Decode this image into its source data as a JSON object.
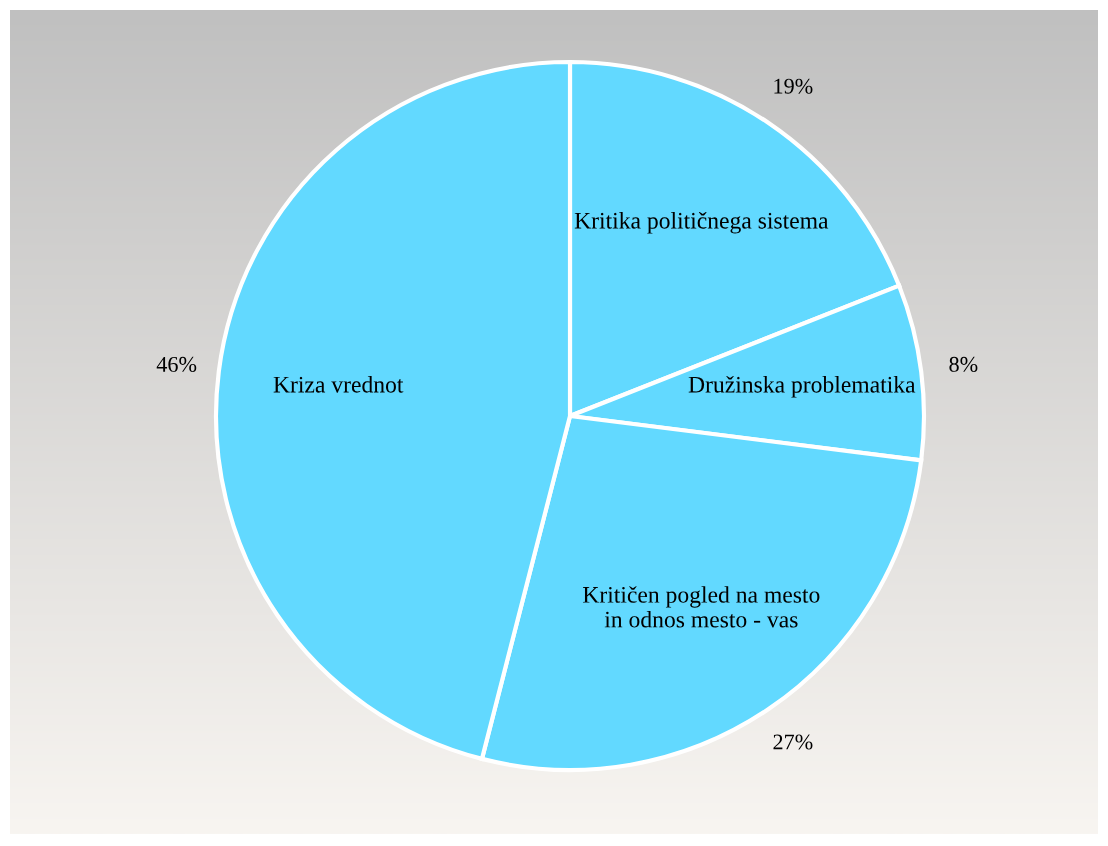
{
  "chart_data": {
    "type": "pie",
    "categories": [
      "Kritika političnega sistema",
      "Družinska problematika",
      "Kritičen pogled na mesto\nin odnos mesto - vas",
      "Kriza vrednot"
    ],
    "values": [
      19,
      8,
      27,
      46
    ],
    "value_labels": [
      "19%",
      "8%",
      "27%",
      "46%"
    ],
    "colors": [
      "#62d9ff",
      "#62d9ff",
      "#62d9ff",
      "#62d9ff"
    ]
  }
}
